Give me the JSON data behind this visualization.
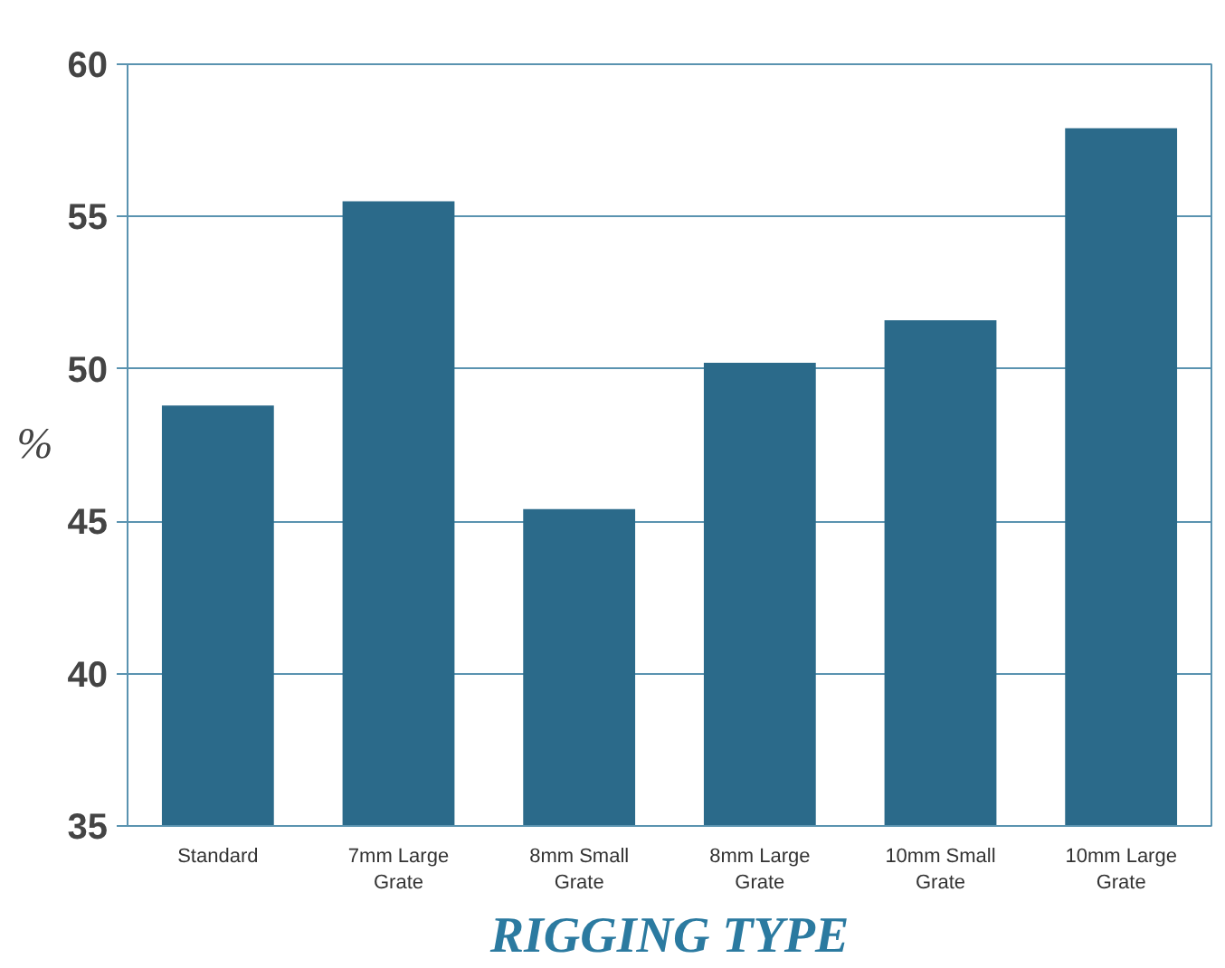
{
  "chart_data": {
    "type": "bar",
    "categories": [
      "Standard",
      "7mm Large Grate",
      "8mm Small Grate",
      "8mm Large Grate",
      "10mm Small Grate",
      "10mm Large Grate"
    ],
    "values": [
      48.8,
      55.5,
      45.4,
      50.2,
      51.6,
      57.9
    ],
    "color": "#2b6a8a",
    "ylabel": "%",
    "xlabel": "RIGGING TYPE",
    "ylim": [
      35,
      60
    ],
    "yticks": [
      35,
      40,
      45,
      50,
      55,
      60
    ],
    "grid": "y"
  }
}
